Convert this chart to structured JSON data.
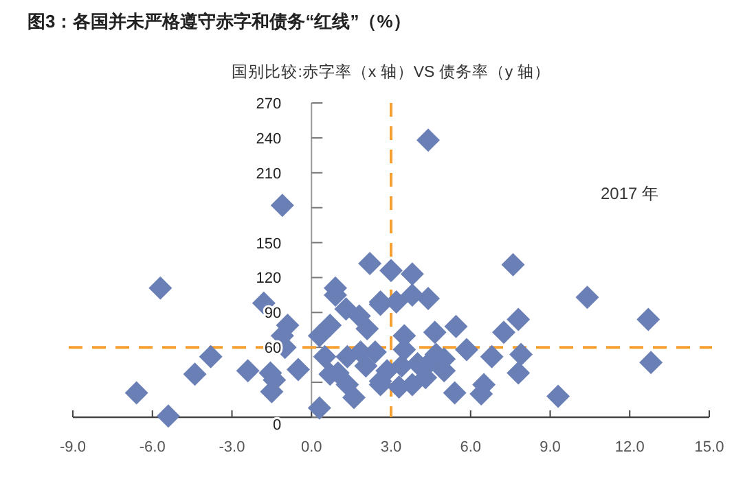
{
  "chart_data": {
    "type": "scatter",
    "title": "图3：各国并未严格遵守赤字和债务“红线”（%）",
    "subtitle": "国别比较:赤字率（x 轴）VS 债务率（y 轴）",
    "annotations": [
      "2017 年"
    ],
    "marker": "diamond",
    "grid": false,
    "xlim": [
      -9,
      15
    ],
    "xticks": [
      {
        "value": -9,
        "label": "-9.0"
      },
      {
        "value": -6,
        "label": "-6.0"
      },
      {
        "value": -3,
        "label": "-3.0"
      },
      {
        "value": 0,
        "label": "0.0"
      },
      {
        "value": 3,
        "label": "3.0"
      },
      {
        "value": 6,
        "label": "6.0"
      },
      {
        "value": 9,
        "label": "9.0"
      },
      {
        "value": 12,
        "label": "12.0"
      },
      {
        "value": 15,
        "label": "15.0"
      }
    ],
    "ylim": [
      0,
      270
    ],
    "yticks": [
      0,
      {
        "value": 30,
        "label": null
      },
      60,
      90,
      120,
      150,
      {
        "value": 180,
        "label": null
      },
      210,
      240,
      270
    ],
    "ref_lines": [
      {
        "axis": "x",
        "value": 3,
        "label": null,
        "color": "#f5a030",
        "line_style": "dashed"
      },
      {
        "axis": "y",
        "value": 60,
        "label": null,
        "color": "#f5a030",
        "line_style": "dashed"
      }
    ],
    "series": [
      {
        "color": "#6a7fb5",
        "x": [
          -1.1,
          4.4,
          7.6,
          -5.7,
          -1.8,
          -6.6,
          -5.4,
          -4.4,
          -3.8,
          -2.4,
          -1.55,
          -1.4,
          -1.5,
          -1.0,
          -0.9,
          -0.5,
          -1.1,
          0.3,
          10.4,
          12.7,
          12.8,
          9.3,
          7.8,
          7.9,
          7.8,
          7.25,
          6.8,
          6.5,
          6.4,
          5.4,
          5.85,
          5.45,
          4.65,
          5.0,
          4.4,
          3.8,
          3.8,
          3.0,
          2.6,
          3.2,
          3.5,
          4.5,
          5.0,
          3.4,
          3.3,
          2.6,
          2.2,
          0.9,
          0.9,
          1.3,
          0.7,
          0.3,
          1.8,
          2.1,
          2.6,
          0.5,
          0.7,
          1.35,
          1.6,
          2.05,
          2.6,
          1.85,
          1.35,
          1.0,
          2.85,
          2.4,
          3.5,
          4.0,
          4.3,
          3.8,
          4.7
        ],
        "values": [
          182,
          238,
          131,
          111,
          98,
          21,
          1,
          37,
          52,
          40,
          38,
          32,
          22,
          60,
          79,
          41,
          70,
          8,
          103,
          84,
          47,
          18,
          84,
          54,
          38,
          73,
          52,
          28,
          20,
          21,
          58,
          78,
          73,
          50,
          102,
          123,
          105,
          126,
          99,
          99,
          70,
          48,
          40,
          44,
          26,
          31,
          132,
          111,
          105,
          93,
          79,
          70,
          87,
          76,
          97,
          52,
          37,
          28,
          17,
          44,
          28,
          56,
          52,
          38,
          40,
          56,
          58,
          46,
          34,
          28,
          54
        ]
      }
    ]
  }
}
